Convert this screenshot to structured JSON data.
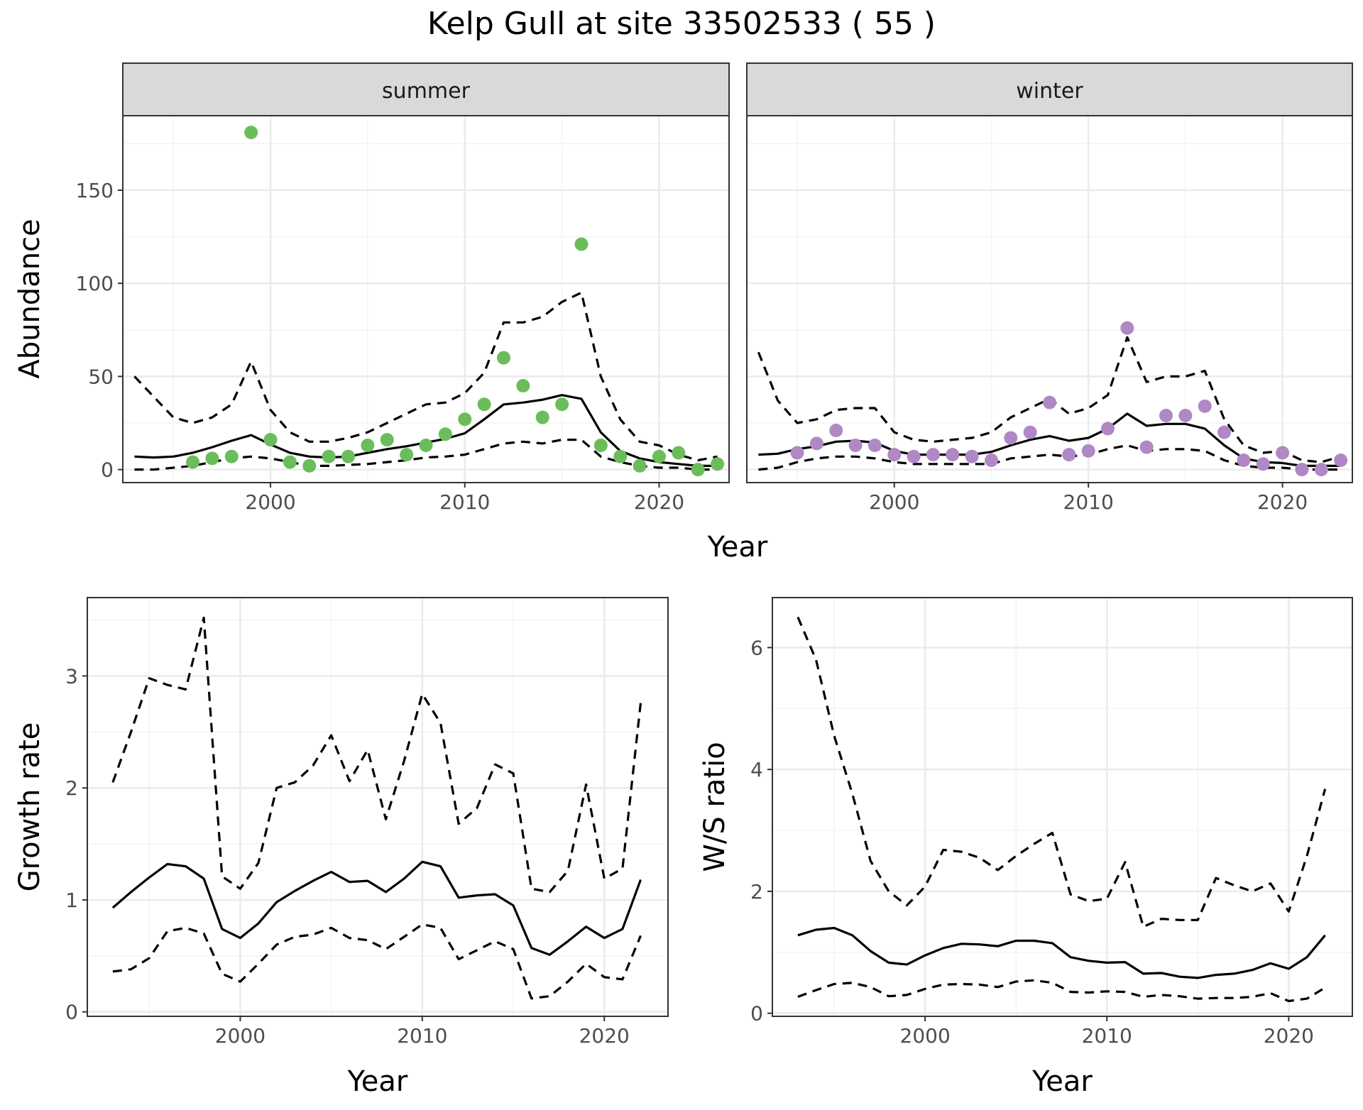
{
  "title": "Kelp Gull at site 33502533 ( 55 )",
  "chart_data": [
    {
      "type": "line",
      "subtype": "faceted scatter with model line and confidence band",
      "ylabel": "Abundance",
      "xlabel": "Year",
      "xlim": [
        1992.4,
        2023.6
      ],
      "ylim": [
        -7,
        190
      ],
      "xticks": [
        2000,
        2010,
        2020
      ],
      "yticks": [
        0,
        50,
        100,
        150
      ],
      "grid": true,
      "facets": [
        {
          "name": "summer",
          "point_color": "#6bbd5b",
          "points": {
            "x": [
              1996,
              1997,
              1998,
              1999,
              2000,
              2001,
              2002,
              2003,
              2004,
              2005,
              2006,
              2007,
              2008,
              2009,
              2010,
              2011,
              2012,
              2013,
              2014,
              2015,
              2016,
              2017,
              2018,
              2019,
              2020,
              2021,
              2022,
              2023
            ],
            "y": [
              4,
              6,
              7,
              181,
              16,
              4,
              2,
              7,
              7,
              13,
              16,
              8,
              13,
              19,
              27,
              35,
              60,
              45,
              28,
              35,
              121,
              13,
              7,
              2,
              7,
              9,
              0,
              3
            ]
          },
          "fit": {
            "x": [
              1993,
              1994,
              1995,
              1996,
              1997,
              1998,
              1999,
              2000,
              2001,
              2002,
              2003,
              2004,
              2005,
              2006,
              2007,
              2008,
              2009,
              2010,
              2011,
              2012,
              2013,
              2014,
              2015,
              2016,
              2017,
              2018,
              2019,
              2020,
              2021,
              2022,
              2023
            ],
            "y": [
              7,
              6.5,
              7,
              9,
              12,
              15.5,
              18.5,
              13.5,
              9,
              7,
              6.5,
              7,
              9,
              11,
              12.5,
              14.5,
              16.5,
              19.5,
              27,
              35,
              36,
              37.5,
              40,
              38,
              20,
              10,
              6,
              4,
              3,
              2,
              2
            ]
          },
          "upper": {
            "x": [
              1993,
              1994,
              1995,
              1996,
              1997,
              1998,
              1999,
              2000,
              2001,
              2002,
              2003,
              2004,
              2005,
              2006,
              2007,
              2008,
              2009,
              2010,
              2011,
              2012,
              2013,
              2014,
              2015,
              2016,
              2017,
              2018,
              2019,
              2020,
              2021,
              2022,
              2023
            ],
            "y": [
              50,
              39,
              28,
              25,
              28,
              35,
              58,
              32,
              20,
              15,
              15,
              17,
              20,
              25,
              30,
              35,
              36,
              41,
              52,
              79,
              79,
              82,
              90,
              95,
              50,
              27,
              15,
              13,
              8,
              5,
              7
            ]
          },
          "lower": {
            "x": [
              1993,
              1994,
              1995,
              1996,
              1997,
              1998,
              1999,
              2000,
              2001,
              2002,
              2003,
              2004,
              2005,
              2006,
              2007,
              2008,
              2009,
              2010,
              2011,
              2012,
              2013,
              2014,
              2015,
              2016,
              2017,
              2018,
              2019,
              2020,
              2021,
              2022,
              2023
            ],
            "y": [
              0,
              0,
              1,
              2,
              4,
              6,
              7,
              6,
              4,
              2,
              2,
              2.5,
              3,
              4,
              5,
              6.5,
              7,
              8,
              11,
              14,
              15,
              14,
              16,
              16,
              7,
              4,
              2,
              1,
              1,
              0,
              0
            ]
          }
        },
        {
          "name": "winter",
          "point_color": "#b088c4",
          "points": {
            "x": [
              1995,
              1996,
              1997,
              1998,
              1999,
              2000,
              2001,
              2002,
              2003,
              2004,
              2005,
              2006,
              2007,
              2008,
              2009,
              2010,
              2011,
              2012,
              2013,
              2014,
              2015,
              2016,
              2017,
              2018,
              2019,
              2020,
              2021,
              2022,
              2023
            ],
            "y": [
              9,
              14,
              21,
              13,
              13,
              8,
              7,
              8,
              8,
              7,
              5,
              17,
              20,
              36,
              8,
              10,
              22,
              76,
              12,
              29,
              29,
              34,
              20,
              5,
              3,
              9,
              0,
              0,
              5
            ]
          },
          "fit": {
            "x": [
              1993,
              1994,
              1995,
              1996,
              1997,
              1998,
              1999,
              2000,
              2001,
              2002,
              2003,
              2004,
              2005,
              2006,
              2007,
              2008,
              2009,
              2010,
              2011,
              2012,
              2013,
              2014,
              2015,
              2016,
              2017,
              2018,
              2019,
              2020,
              2021,
              2022,
              2023
            ],
            "y": [
              8,
              8.5,
              11,
              12.5,
              15,
              15.5,
              14.5,
              10,
              8,
              8,
              8,
              8,
              9.5,
              13,
              16,
              18,
              15.5,
              17,
              22,
              30,
              23.5,
              24.5,
              24.5,
              22,
              13,
              6,
              4,
              3.5,
              2,
              2,
              2
            ]
          },
          "upper": {
            "x": [
              1993,
              1994,
              1995,
              1996,
              1997,
              1998,
              1999,
              2000,
              2001,
              2002,
              2003,
              2004,
              2005,
              2006,
              2007,
              2008,
              2009,
              2010,
              2011,
              2012,
              2013,
              2014,
              2015,
              2016,
              2017,
              2018,
              2019,
              2020,
              2021,
              2022,
              2023
            ],
            "y": [
              63,
              37,
              25,
              27,
              32,
              33,
              33,
              20,
              16,
              15,
              16,
              17,
              20,
              28,
              33,
              38,
              30,
              33,
              40,
              71,
              47,
              50,
              50,
              53,
              27,
              13,
              9,
              10,
              5,
              4,
              7
            ]
          },
          "lower": {
            "x": [
              1993,
              1994,
              1995,
              1996,
              1997,
              1998,
              1999,
              2000,
              2001,
              2002,
              2003,
              2004,
              2005,
              2006,
              2007,
              2008,
              2009,
              2010,
              2011,
              2012,
              2013,
              2014,
              2015,
              2016,
              2017,
              2018,
              2019,
              2020,
              2021,
              2022,
              2023
            ],
            "y": [
              0,
              1,
              4,
              6,
              7,
              7,
              6,
              4,
              3,
              3,
              3,
              3,
              3,
              6,
              7,
              8,
              7,
              8,
              11,
              13,
              10,
              11,
              11,
              10,
              5,
              2,
              1,
              1,
              0,
              0,
              0
            ]
          }
        }
      ]
    },
    {
      "type": "line",
      "ylabel": "Growth rate",
      "xlabel": "Year",
      "xlim": [
        1991.6,
        2023.5
      ],
      "ylim": [
        -0.04,
        3.7
      ],
      "xticks": [
        2000,
        2010,
        2020
      ],
      "yticks": [
        0,
        1,
        2,
        3
      ],
      "grid": true,
      "series": [
        {
          "role": "estimate",
          "style": "solid",
          "x": [
            1993,
            1994,
            1995,
            1996,
            1997,
            1998,
            1999,
            2000,
            2001,
            2002,
            2003,
            2004,
            2005,
            2006,
            2007,
            2008,
            2009,
            2010,
            2011,
            2012,
            2013,
            2014,
            2015,
            2016,
            2017,
            2018,
            2019,
            2020,
            2021,
            2022
          ],
          "y": [
            0.93,
            1.07,
            1.2,
            1.32,
            1.3,
            1.19,
            0.74,
            0.66,
            0.79,
            0.98,
            1.08,
            1.17,
            1.25,
            1.16,
            1.17,
            1.07,
            1.19,
            1.34,
            1.3,
            1.02,
            1.04,
            1.05,
            0.95,
            0.57,
            0.51,
            0.63,
            0.76,
            0.66,
            0.74,
            1.18
          ]
        },
        {
          "role": "upper",
          "style": "dashed",
          "x": [
            1993,
            1994,
            1995,
            1996,
            1997,
            1998,
            1999,
            2000,
            2001,
            2002,
            2003,
            2004,
            2005,
            2006,
            2007,
            2008,
            2009,
            2010,
            2011,
            2012,
            2013,
            2014,
            2015,
            2016,
            2017,
            2018,
            2019,
            2020,
            2021,
            2022
          ],
          "y": [
            2.05,
            2.5,
            2.98,
            2.92,
            2.88,
            3.52,
            1.21,
            1.1,
            1.33,
            2.0,
            2.05,
            2.2,
            2.47,
            2.06,
            2.34,
            1.72,
            2.24,
            2.84,
            2.58,
            1.68,
            1.82,
            2.21,
            2.13,
            1.1,
            1.07,
            1.26,
            2.03,
            1.19,
            1.28,
            2.76
          ]
        },
        {
          "role": "lower",
          "style": "dashed",
          "x": [
            1993,
            1994,
            1995,
            1996,
            1997,
            1998,
            1999,
            2000,
            2001,
            2002,
            2003,
            2004,
            2005,
            2006,
            2007,
            2008,
            2009,
            2010,
            2011,
            2012,
            2013,
            2014,
            2015,
            2016,
            2017,
            2018,
            2019,
            2020,
            2021,
            2022
          ],
          "y": [
            0.36,
            0.38,
            0.48,
            0.72,
            0.75,
            0.7,
            0.34,
            0.27,
            0.43,
            0.6,
            0.67,
            0.69,
            0.75,
            0.66,
            0.64,
            0.56,
            0.67,
            0.78,
            0.75,
            0.47,
            0.55,
            0.63,
            0.56,
            0.12,
            0.14,
            0.27,
            0.43,
            0.31,
            0.29,
            0.68
          ]
        }
      ]
    },
    {
      "type": "line",
      "ylabel": "W/S ratio",
      "xlabel": "Year",
      "xlim": [
        1991.6,
        2023.5
      ],
      "ylim": [
        -0.05,
        6.82
      ],
      "xticks": [
        2000,
        2010,
        2020
      ],
      "yticks": [
        0,
        2,
        4,
        6
      ],
      "grid": true,
      "series": [
        {
          "role": "estimate",
          "style": "solid",
          "x": [
            1993,
            1994,
            1995,
            1996,
            1997,
            1998,
            1999,
            2000,
            2001,
            2002,
            2003,
            2004,
            2005,
            2006,
            2007,
            2008,
            2009,
            2010,
            2011,
            2012,
            2013,
            2014,
            2015,
            2016,
            2017,
            2018,
            2019,
            2020,
            2021,
            2022
          ],
          "y": [
            1.28,
            1.37,
            1.4,
            1.28,
            1.02,
            0.83,
            0.8,
            0.95,
            1.07,
            1.14,
            1.13,
            1.1,
            1.19,
            1.19,
            1.15,
            0.92,
            0.86,
            0.83,
            0.84,
            0.65,
            0.66,
            0.6,
            0.58,
            0.63,
            0.65,
            0.71,
            0.82,
            0.73,
            0.92,
            1.28
          ]
        },
        {
          "role": "upper",
          "style": "dashed",
          "x": [
            1993,
            1994,
            1995,
            1996,
            1997,
            1998,
            1999,
            2000,
            2001,
            2002,
            2003,
            2004,
            2005,
            2006,
            2007,
            2008,
            2009,
            2010,
            2011,
            2012,
            2013,
            2014,
            2015,
            2016,
            2017,
            2018,
            2019,
            2020,
            2021,
            2022
          ],
          "y": [
            6.5,
            5.8,
            4.55,
            3.6,
            2.5,
            2.0,
            1.77,
            2.08,
            2.68,
            2.65,
            2.55,
            2.35,
            2.58,
            2.78,
            2.96,
            1.95,
            1.84,
            1.88,
            2.48,
            1.42,
            1.55,
            1.53,
            1.53,
            2.22,
            2.1,
            2.0,
            2.13,
            1.67,
            2.58,
            3.68
          ]
        },
        {
          "role": "lower",
          "style": "dashed",
          "x": [
            1993,
            1994,
            1995,
            1996,
            1997,
            1998,
            1999,
            2000,
            2001,
            2002,
            2003,
            2004,
            2005,
            2006,
            2007,
            2008,
            2009,
            2010,
            2011,
            2012,
            2013,
            2014,
            2015,
            2016,
            2017,
            2018,
            2019,
            2020,
            2021,
            2022
          ],
          "y": [
            0.27,
            0.38,
            0.48,
            0.5,
            0.43,
            0.28,
            0.3,
            0.4,
            0.47,
            0.48,
            0.47,
            0.43,
            0.52,
            0.54,
            0.5,
            0.35,
            0.34,
            0.36,
            0.35,
            0.27,
            0.3,
            0.28,
            0.24,
            0.25,
            0.25,
            0.27,
            0.33,
            0.2,
            0.24,
            0.42
          ]
        }
      ]
    }
  ]
}
